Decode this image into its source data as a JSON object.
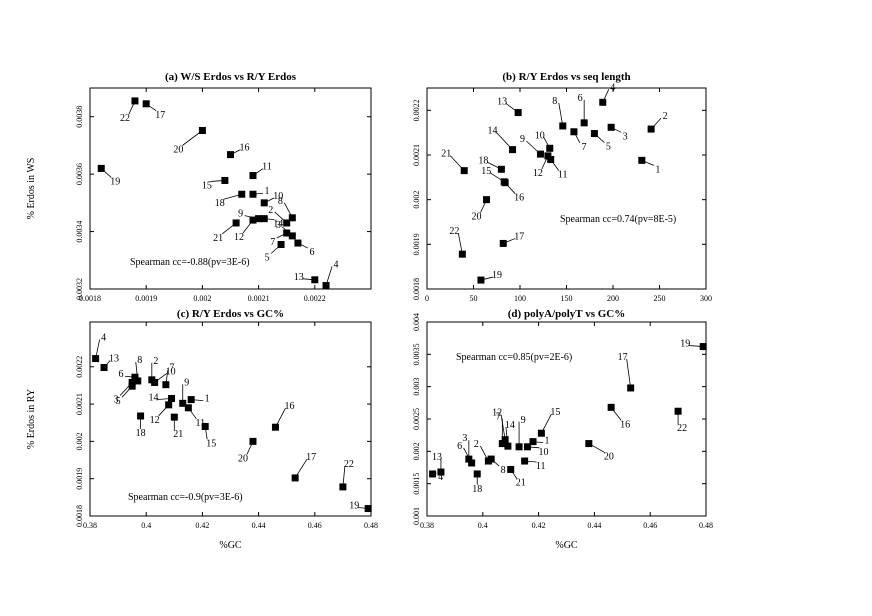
{
  "chart_data": [
    {
      "type": "scatter",
      "title": "(a) W/S Erdos vs R/Y Erdos",
      "xlabel": "",
      "ylabel": "% Erdos in WS",
      "xlim": [
        0.0018,
        0.0023
      ],
      "ylim": [
        0.0032,
        0.0039
      ],
      "xticks": [
        "0.0018",
        "0.0019",
        "0.002",
        "0.0021",
        "0.0022"
      ],
      "yticks": [
        "0.0032",
        "0.0034",
        "0.0036",
        "0.0038"
      ],
      "annotation": "Spearman cc=-0.88(pv=3E-6)",
      "points": [
        {
          "label": "19",
          "x": 0.00182,
          "y": 0.00362
        },
        {
          "label": "22",
          "x": 0.00188,
          "y": 0.003855
        },
        {
          "label": "17",
          "x": 0.0019,
          "y": 0.003845
        },
        {
          "label": "20",
          "x": 0.002,
          "y": 0.003752
        },
        {
          "label": "16",
          "x": 0.00205,
          "y": 0.003668
        },
        {
          "label": "15",
          "x": 0.00204,
          "y": 0.003578
        },
        {
          "label": "11",
          "x": 0.00209,
          "y": 0.003595
        },
        {
          "label": "18",
          "x": 0.00207,
          "y": 0.00353
        },
        {
          "label": "1",
          "x": 0.00209,
          "y": 0.00353
        },
        {
          "label": "10",
          "x": 0.00211,
          "y": 0.0035
        },
        {
          "label": "9",
          "x": 0.0021,
          "y": 0.003445
        },
        {
          "label": "14",
          "x": 0.00211,
          "y": 0.003445
        },
        {
          "label": "21",
          "x": 0.00206,
          "y": 0.00343
        },
        {
          "label": "12",
          "x": 0.00209,
          "y": 0.00344
        },
        {
          "label": "2",
          "x": 0.00215,
          "y": 0.00343
        },
        {
          "label": "8",
          "x": 0.00216,
          "y": 0.003448
        },
        {
          "label": "7",
          "x": 0.00215,
          "y": 0.003395
        },
        {
          "label": "3",
          "x": 0.00216,
          "y": 0.003385
        },
        {
          "label": "5",
          "x": 0.00214,
          "y": 0.003355
        },
        {
          "label": "6",
          "x": 0.00217,
          "y": 0.00336
        },
        {
          "label": "13",
          "x": 0.0022,
          "y": 0.003232
        },
        {
          "label": "4",
          "x": 0.00222,
          "y": 0.003212
        }
      ]
    },
    {
      "type": "scatter",
      "title": "(b) R/Y Erdos vs seq length",
      "xlabel": "",
      "ylabel": "",
      "xlim": [
        0,
        300
      ],
      "ylim": [
        0.0018,
        0.00225
      ],
      "xticks": [
        "0",
        "50",
        "100",
        "150",
        "200",
        "250",
        "300"
      ],
      "yticks": [
        "0.0018",
        "0.0019",
        "0.002",
        "0.0021",
        "0.0022"
      ],
      "annotation": "Spearman cc=0.74(pv=8E-5)",
      "points": [
        {
          "label": "13",
          "x": 98,
          "y": 0.002195
        },
        {
          "label": "8",
          "x": 146,
          "y": 0.002165
        },
        {
          "label": "6",
          "x": 169,
          "y": 0.002172
        },
        {
          "label": "4",
          "x": 189,
          "y": 0.002218
        },
        {
          "label": "2",
          "x": 241,
          "y": 0.002158
        },
        {
          "label": "3",
          "x": 198,
          "y": 0.002162
        },
        {
          "label": "14",
          "x": 92,
          "y": 0.002112
        },
        {
          "label": "10",
          "x": 132,
          "y": 0.002115
        },
        {
          "label": "9",
          "x": 122,
          "y": 0.002102
        },
        {
          "label": "7",
          "x": 158,
          "y": 0.002152
        },
        {
          "label": "5",
          "x": 180,
          "y": 0.002148
        },
        {
          "label": "1",
          "x": 231,
          "y": 0.002088
        },
        {
          "label": "21",
          "x": 40,
          "y": 0.002065
        },
        {
          "label": "18",
          "x": 80,
          "y": 0.002068
        },
        {
          "label": "12",
          "x": 130,
          "y": 0.002098
        },
        {
          "label": "11",
          "x": 133,
          "y": 0.00209
        },
        {
          "label": "15",
          "x": 83,
          "y": 0.00204
        },
        {
          "label": "16",
          "x": 84,
          "y": 0.002038
        },
        {
          "label": "20",
          "x": 64,
          "y": 0.002
        },
        {
          "label": "17",
          "x": 82,
          "y": 0.001902
        },
        {
          "label": "22",
          "x": 38,
          "y": 0.001878
        },
        {
          "label": "19",
          "x": 58,
          "y": 0.00182
        }
      ]
    },
    {
      "type": "scatter",
      "title": "(c) R/Y Erdos vs GC%",
      "xlabel": "%GC",
      "ylabel": "% Erdos in RY",
      "xlim": [
        0.38,
        0.48
      ],
      "ylim": [
        0.0018,
        0.00232
      ],
      "xticks": [
        "0.38",
        "0.4",
        "0.42",
        "0.44",
        "0.46",
        "0.48"
      ],
      "yticks": [
        "0.0018",
        "0.0019",
        "0.002",
        "0.0021",
        "0.0022"
      ],
      "annotation": "Spearman cc=-0.9(pv=3E-6)",
      "points": [
        {
          "label": "4",
          "x": 0.382,
          "y": 0.002222
        },
        {
          "label": "13",
          "x": 0.385,
          "y": 0.002198
        },
        {
          "label": "6",
          "x": 0.396,
          "y": 0.002172
        },
        {
          "label": "3",
          "x": 0.395,
          "y": 0.002158
        },
        {
          "label": "5",
          "x": 0.395,
          "y": 0.002148
        },
        {
          "label": "8",
          "x": 0.397,
          "y": 0.002162
        },
        {
          "label": "2",
          "x": 0.402,
          "y": 0.002165
        },
        {
          "label": "10",
          "x": 0.403,
          "y": 0.002158
        },
        {
          "label": "7",
          "x": 0.407,
          "y": 0.002152
        },
        {
          "label": "9",
          "x": 0.413,
          "y": 0.002102
        },
        {
          "label": "14",
          "x": 0.409,
          "y": 0.002115
        },
        {
          "label": "12",
          "x": 0.408,
          "y": 0.002098
        },
        {
          "label": "1",
          "x": 0.416,
          "y": 0.002112
        },
        {
          "label": "11",
          "x": 0.415,
          "y": 0.00209
        },
        {
          "label": "18",
          "x": 0.398,
          "y": 0.002068
        },
        {
          "label": "21",
          "x": 0.41,
          "y": 0.002065
        },
        {
          "label": "15",
          "x": 0.421,
          "y": 0.00204
        },
        {
          "label": "16",
          "x": 0.446,
          "y": 0.002038
        },
        {
          "label": "20",
          "x": 0.438,
          "y": 0.002
        },
        {
          "label": "17",
          "x": 0.453,
          "y": 0.001902
        },
        {
          "label": "22",
          "x": 0.47,
          "y": 0.001878
        },
        {
          "label": "19",
          "x": 0.479,
          "y": 0.00182
        }
      ]
    },
    {
      "type": "scatter",
      "title": "(d) polyA/polyT vs GC%",
      "xlabel": "%GC",
      "ylabel": "",
      "xlim": [
        0.38,
        0.48
      ],
      "ylim": [
        0.001,
        0.004
      ],
      "xticks": [
        "0.38",
        "0.4",
        "0.42",
        "0.44",
        "0.46",
        "0.48"
      ],
      "yticks": [
        "0.001",
        "0.0015",
        "0.002",
        "0.0025",
        "0.003",
        "0.0035",
        "0.004"
      ],
      "annotation": "Spearman cc=0.85(pv=2E-6)",
      "points": [
        {
          "label": "4",
          "x": 0.382,
          "y": 0.00165
        },
        {
          "label": "13",
          "x": 0.385,
          "y": 0.00168
        },
        {
          "label": "6",
          "x": 0.396,
          "y": 0.00182
        },
        {
          "label": "3",
          "x": 0.395,
          "y": 0.00188
        },
        {
          "label": "18",
          "x": 0.398,
          "y": 0.00165
        },
        {
          "label": "2",
          "x": 0.402,
          "y": 0.00185
        },
        {
          "label": "8",
          "x": 0.403,
          "y": 0.00188
        },
        {
          "label": "7",
          "x": 0.407,
          "y": 0.00212
        },
        {
          "label": "12",
          "x": 0.408,
          "y": 0.00218
        },
        {
          "label": "9",
          "x": 0.413,
          "y": 0.00207
        },
        {
          "label": "14",
          "x": 0.409,
          "y": 0.00208
        },
        {
          "label": "1",
          "x": 0.418,
          "y": 0.00215
        },
        {
          "label": "10",
          "x": 0.416,
          "y": 0.00207
        },
        {
          "label": "15",
          "x": 0.421,
          "y": 0.00228
        },
        {
          "label": "11",
          "x": 0.415,
          "y": 0.00185
        },
        {
          "label": "21",
          "x": 0.41,
          "y": 0.00172
        },
        {
          "label": "20",
          "x": 0.438,
          "y": 0.00212
        },
        {
          "label": "16",
          "x": 0.446,
          "y": 0.00268
        },
        {
          "label": "17",
          "x": 0.453,
          "y": 0.00298
        },
        {
          "label": "22",
          "x": 0.47,
          "y": 0.00262
        },
        {
          "label": "19",
          "x": 0.479,
          "y": 0.00362
        }
      ]
    }
  ]
}
